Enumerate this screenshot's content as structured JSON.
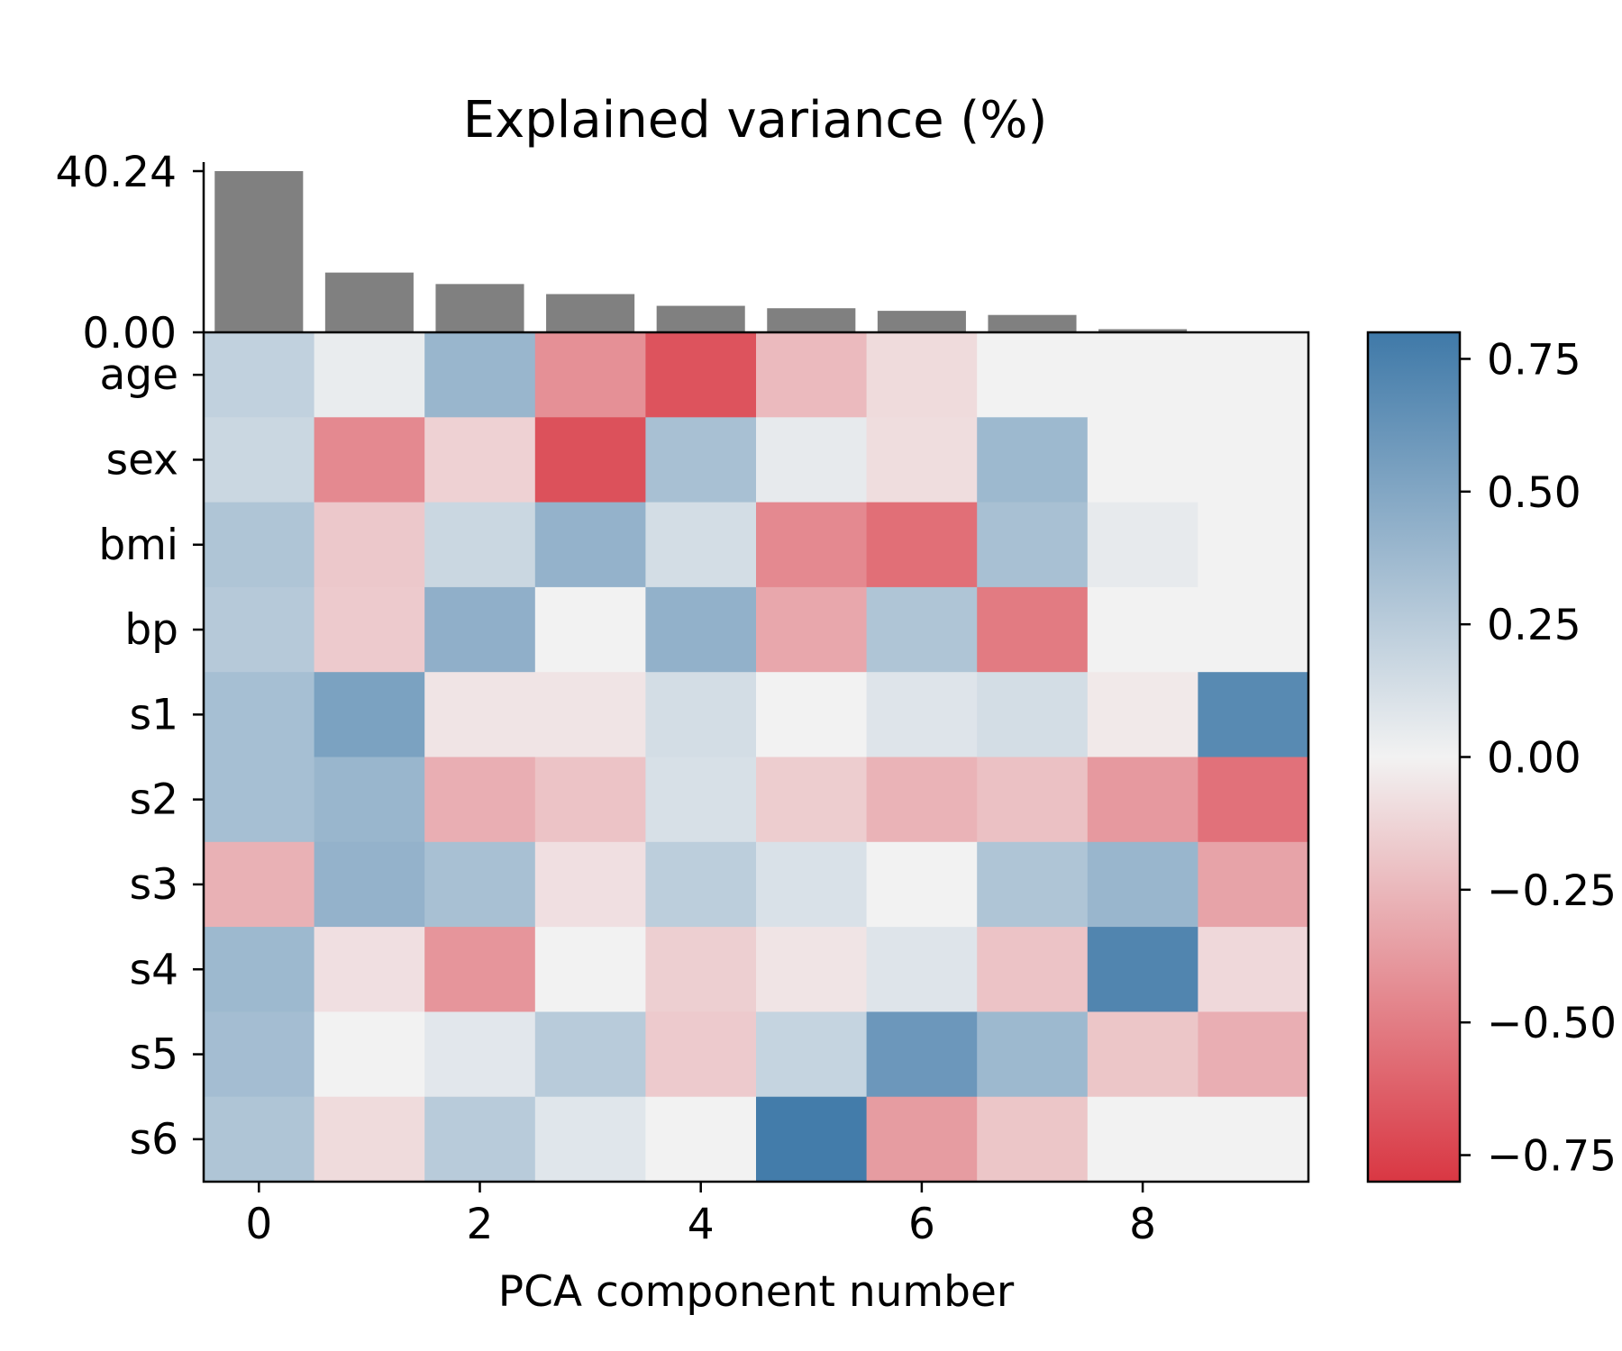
{
  "chart_data": [
    {
      "type": "bar",
      "title": "Explained variance (%)",
      "categories": [
        0,
        1,
        2,
        3,
        4,
        5,
        6,
        7,
        8,
        9
      ],
      "values": [
        40.24,
        14.92,
        12.06,
        9.55,
        6.62,
        6.02,
        5.37,
        4.34,
        0.79,
        0.09
      ],
      "yticks": [
        "40.24",
        "0.00"
      ],
      "ylim": [
        0,
        40.24
      ],
      "colors": {
        "bar": "#808080"
      }
    },
    {
      "type": "heatmap",
      "xlabel": "PCA component number",
      "rows": [
        "age",
        "sex",
        "bmi",
        "bp",
        "s1",
        "s2",
        "s3",
        "s4",
        "s5",
        "s6"
      ],
      "columns": [
        0,
        1,
        2,
        3,
        4,
        5,
        6,
        7,
        8,
        9
      ],
      "xticks": [
        "0",
        "2",
        "4",
        "6",
        "8"
      ],
      "values": [
        [
          0.22,
          0.04,
          0.4,
          -0.42,
          -0.68,
          -0.24,
          -0.1,
          0.0,
          0.0,
          0.0
        ],
        [
          0.18,
          -0.45,
          -0.14,
          -0.69,
          0.33,
          0.05,
          -0.09,
          0.38,
          0.0,
          0.0
        ],
        [
          0.3,
          -0.18,
          0.18,
          0.42,
          0.14,
          -0.45,
          -0.56,
          0.33,
          0.05,
          0.0
        ],
        [
          0.27,
          -0.17,
          0.44,
          0.0,
          0.43,
          -0.32,
          0.3,
          -0.51,
          0.0,
          0.0
        ],
        [
          0.34,
          0.53,
          -0.06,
          -0.06,
          0.14,
          0.0,
          0.09,
          0.14,
          -0.04,
          0.69
        ],
        [
          0.34,
          0.4,
          -0.29,
          -0.2,
          0.12,
          -0.16,
          -0.27,
          -0.21,
          -0.38,
          -0.55
        ],
        [
          -0.28,
          0.42,
          0.33,
          -0.08,
          0.24,
          0.11,
          0.0,
          0.3,
          0.4,
          -0.34
        ],
        [
          0.38,
          -0.08,
          -0.4,
          0.0,
          -0.15,
          -0.06,
          0.09,
          -0.2,
          0.72,
          -0.11
        ],
        [
          0.35,
          0.0,
          0.07,
          0.26,
          -0.17,
          0.2,
          0.6,
          0.38,
          -0.19,
          -0.29
        ],
        [
          0.3,
          -0.1,
          0.26,
          0.08,
          0.0,
          0.78,
          -0.37,
          -0.19,
          0.0,
          0.0
        ]
      ],
      "vlim": [
        -0.8,
        0.8
      ],
      "colorbar_ticks": [
        "0.75",
        "0.50",
        "0.25",
        "0.00",
        "−0.25",
        "−0.50",
        "−0.75"
      ],
      "colorbar_tick_values": [
        0.75,
        0.5,
        0.25,
        0.0,
        -0.25,
        -0.5,
        -0.75
      ],
      "colors": {
        "low": "#d93743",
        "mid": "#f2f2f2",
        "high": "#3f79a8"
      }
    }
  ]
}
